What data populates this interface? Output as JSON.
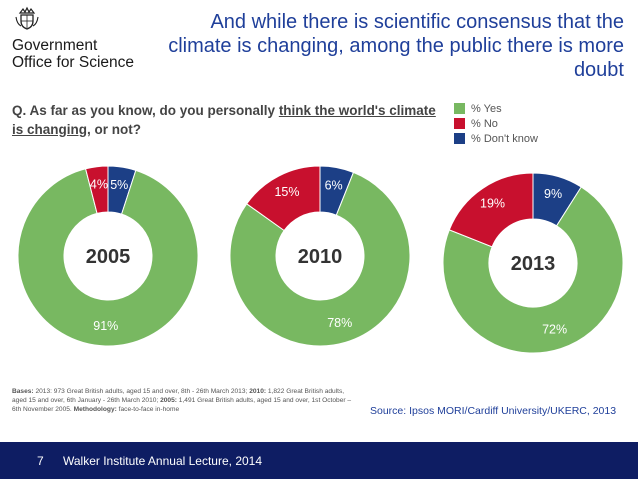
{
  "branding": {
    "org_line1": "Government",
    "org_line2": "Office for Science"
  },
  "headline": "And while there is scientific consensus that the climate is changing, among the public there is more doubt",
  "question": {
    "prefix": "Q. As far as you know, do you personally ",
    "underlined": "think the world's climate is changing",
    "suffix": ", or not?"
  },
  "legend": [
    {
      "label": "% Yes",
      "color": "#78b861"
    },
    {
      "label": "% No",
      "color": "#c8102e"
    },
    {
      "label": "% Don't know",
      "color": "#1c3f86"
    }
  ],
  "chart_data": {
    "type": "pie",
    "subtype": "donut",
    "series_labels": [
      "% Yes",
      "% No",
      "% Don't know"
    ],
    "colors": [
      "#78b861",
      "#c8102e",
      "#1c3f86"
    ],
    "charts": [
      {
        "year": "2005",
        "values": [
          91,
          4,
          5
        ],
        "labels": [
          "91%",
          "4%",
          "5%"
        ]
      },
      {
        "year": "2010",
        "values": [
          78,
          15,
          6
        ],
        "labels": [
          "78%",
          "15%",
          "6%"
        ]
      },
      {
        "year": "2013",
        "values": [
          72,
          19,
          9
        ],
        "labels": [
          "72%",
          "19%",
          "9%"
        ]
      }
    ]
  },
  "bases": {
    "b1": "Bases:",
    "t1": " 2013: 973 Great British adults, aged 15 and over, 8th - 26th March 2013; ",
    "b2": "2010:",
    "t2": " 1,822 Great British adults, aged 15 and over, 6th January - 26th March 2010; ",
    "b3": "2005:",
    "t3": " 1,491 Great British adults, aged 15 and over, 1st October – 6th November 2005. ",
    "b4": "Methodology:",
    "t4": " face-to-face in-home"
  },
  "source": "Source: Ipsos MORI/Cardiff University/UKERC, 2013",
  "footer": {
    "slide_number": "7",
    "text": "Walker Institute Annual Lecture, 2014"
  }
}
